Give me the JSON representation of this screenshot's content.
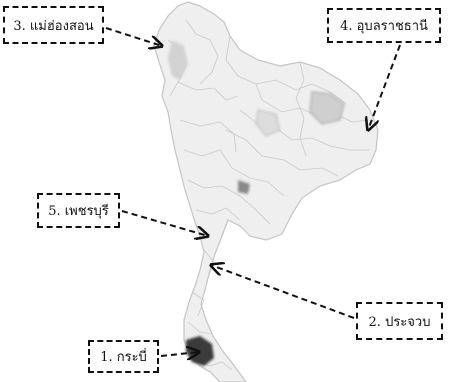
{
  "labels": [
    {
      "id": "mae-hong-son",
      "text": "3. แม่ฮ่องสอน"
    },
    {
      "id": "ubon-ratchathani",
      "text": "4. อุบลราชธานี"
    },
    {
      "id": "phetchaburi",
      "text": "5. เพชรบุรี"
    },
    {
      "id": "prachuap",
      "text": "2. ประจวบ"
    },
    {
      "id": "krabi",
      "text": "1. กระบี่"
    }
  ],
  "colors": {
    "land_fill": "#eeeeee",
    "border": "#bdbdbd",
    "highlight": "#333333",
    "annotation": "#111111"
  }
}
